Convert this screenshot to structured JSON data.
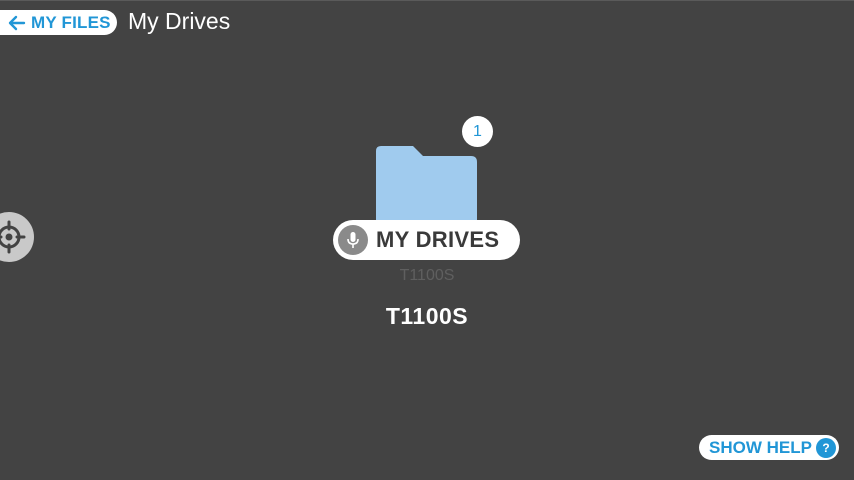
{
  "header": {
    "back_label": "MY FILES",
    "title": "My Drives"
  },
  "tile": {
    "badge_count": "1",
    "voice_label": "MY DRIVES",
    "subtitle": "T1100S",
    "name": "T1100S"
  },
  "help": {
    "label": "SHOW HELP",
    "icon_glyph": "?"
  },
  "colors": {
    "background": "#434343",
    "accent": "#2196d6",
    "folder": "#a0cbee",
    "mic_bg": "#8a8a8a"
  },
  "icons": {
    "back": "arrow-left-icon",
    "target": "crosshair-target-icon",
    "folder": "folder-icon",
    "mic": "microphone-icon",
    "help": "question-mark-icon"
  }
}
